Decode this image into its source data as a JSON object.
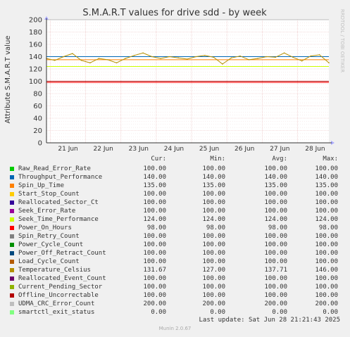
{
  "title": "S.M.A.R.T values for drive sdd - by week",
  "watermark": "RRDTOOL / TOBI OETIKER",
  "footer": "Munin 2.0.67",
  "last_update": "Last update: Sat Jun 28 21:21:43 2025",
  "legend_headers": {
    "cur": "Cur:",
    "min": "Min:",
    "avg": "Avg:",
    "max": "Max:"
  },
  "legend": [
    {
      "name": "Raw_Read_Error_Rate",
      "color": "#00cc00",
      "cur": "100.00",
      "min": "100.00",
      "avg": "100.00",
      "max": "100.00"
    },
    {
      "name": "Throughput_Performance",
      "color": "#0066b3",
      "cur": "140.00",
      "min": "140.00",
      "avg": "140.00",
      "max": "140.00"
    },
    {
      "name": "Spin_Up_Time",
      "color": "#ff8000",
      "cur": "135.00",
      "min": "135.00",
      "avg": "135.00",
      "max": "135.00"
    },
    {
      "name": "Start_Stop_Count",
      "color": "#ffcc00",
      "cur": "100.00",
      "min": "100.00",
      "avg": "100.00",
      "max": "100.00"
    },
    {
      "name": "Reallocated_Sector_Ct",
      "color": "#330099",
      "cur": "100.00",
      "min": "100.00",
      "avg": "100.00",
      "max": "100.00"
    },
    {
      "name": "Seek_Error_Rate",
      "color": "#990099",
      "cur": "100.00",
      "min": "100.00",
      "avg": "100.00",
      "max": "100.00"
    },
    {
      "name": "Seek_Time_Performance",
      "color": "#ccff00",
      "cur": "124.00",
      "min": "124.00",
      "avg": "124.00",
      "max": "124.00"
    },
    {
      "name": "Power_On_Hours",
      "color": "#ff0000",
      "cur": "98.00",
      "min": "98.00",
      "avg": "98.00",
      "max": "98.00"
    },
    {
      "name": "Spin_Retry_Count",
      "color": "#808080",
      "cur": "100.00",
      "min": "100.00",
      "avg": "100.00",
      "max": "100.00"
    },
    {
      "name": "Power_Cycle_Count",
      "color": "#008f00",
      "cur": "100.00",
      "min": "100.00",
      "avg": "100.00",
      "max": "100.00"
    },
    {
      "name": "Power_Off_Retract_Count",
      "color": "#00487d",
      "cur": "100.00",
      "min": "100.00",
      "avg": "100.00",
      "max": "100.00"
    },
    {
      "name": "Load_Cycle_Count",
      "color": "#b35a00",
      "cur": "100.00",
      "min": "100.00",
      "avg": "100.00",
      "max": "100.00"
    },
    {
      "name": "Temperature_Celsius",
      "color": "#b38f00",
      "cur": "131.67",
      "min": "127.00",
      "avg": "137.71",
      "max": "146.00"
    },
    {
      "name": "Reallocated_Event_Count",
      "color": "#6b006b",
      "cur": "100.00",
      "min": "100.00",
      "avg": "100.00",
      "max": "100.00"
    },
    {
      "name": "Current_Pending_Sector",
      "color": "#8fb300",
      "cur": "100.00",
      "min": "100.00",
      "avg": "100.00",
      "max": "100.00"
    },
    {
      "name": "Offline_Uncorrectable",
      "color": "#b30000",
      "cur": "100.00",
      "min": "100.00",
      "avg": "100.00",
      "max": "100.00"
    },
    {
      "name": "UDMA_CRC_Error_Count",
      "color": "#bebebe",
      "cur": "200.00",
      "min": "200.00",
      "avg": "200.00",
      "max": "200.00"
    },
    {
      "name": "smartctl_exit_status",
      "color": "#80ff80",
      "cur": "0.00",
      "min": "0.00",
      "avg": "0.00",
      "max": "0.00"
    }
  ],
  "chart_data": {
    "type": "line",
    "title": "S.M.A.R.T values for drive sdd - by week",
    "ylabel": "Attribute S.M.A.R.T value",
    "ylim": [
      0,
      200
    ],
    "yticks": [
      0,
      20,
      40,
      60,
      80,
      100,
      120,
      140,
      160,
      180,
      200
    ],
    "x_range": [
      "Jun 20 21:21",
      "Jun 28 21:21"
    ],
    "xticks": [
      "21 Jun",
      "22 Jun",
      "23 Jun",
      "24 Jun",
      "25 Jun",
      "26 Jun",
      "27 Jun",
      "28 Jun"
    ],
    "grid": true,
    "constant_series": [
      {
        "name": "Raw_Read_Error_Rate",
        "value": 100
      },
      {
        "name": "Throughput_Performance",
        "value": 140
      },
      {
        "name": "Spin_Up_Time",
        "value": 135
      },
      {
        "name": "Start_Stop_Count",
        "value": 100
      },
      {
        "name": "Reallocated_Sector_Ct",
        "value": 100
      },
      {
        "name": "Seek_Error_Rate",
        "value": 100
      },
      {
        "name": "Seek_Time_Performance",
        "value": 124
      },
      {
        "name": "Power_On_Hours",
        "value": 98
      },
      {
        "name": "Spin_Retry_Count",
        "value": 100
      },
      {
        "name": "Power_Cycle_Count",
        "value": 100
      },
      {
        "name": "Power_Off_Retract_Count",
        "value": 100
      },
      {
        "name": "Load_Cycle_Count",
        "value": 100
      },
      {
        "name": "Reallocated_Event_Count",
        "value": 100
      },
      {
        "name": "Current_Pending_Sector",
        "value": 100
      },
      {
        "name": "Offline_Uncorrectable",
        "value": 100
      },
      {
        "name": "UDMA_CRC_Error_Count",
        "value": 200
      },
      {
        "name": "smartctl_exit_status",
        "value": 0
      }
    ],
    "series": [
      {
        "name": "Temperature_Celsius",
        "x": [
          "Jun 20 21:21",
          "Jun 21 03:00",
          "Jun 21 09:00",
          "Jun 21 15:00",
          "Jun 21 21:00",
          "Jun 22 03:00",
          "Jun 22 09:00",
          "Jun 22 15:00",
          "Jun 22 21:00",
          "Jun 23 03:00",
          "Jun 23 09:00",
          "Jun 23 15:00",
          "Jun 23 21:00",
          "Jun 24 03:00",
          "Jun 24 09:00",
          "Jun 24 15:00",
          "Jun 24 21:00",
          "Jun 25 03:00",
          "Jun 25 09:00",
          "Jun 25 15:00",
          "Jun 25 21:00",
          "Jun 26 03:00",
          "Jun 26 09:00",
          "Jun 26 15:00",
          "Jun 26 21:00",
          "Jun 27 03:00",
          "Jun 27 09:00",
          "Jun 27 15:00",
          "Jun 27 21:00",
          "Jun 28 03:00",
          "Jun 28 09:00",
          "Jun 28 15:00",
          "Jun 28 21:21"
        ],
        "values": [
          137,
          134,
          140,
          145,
          134,
          130,
          137,
          135,
          130,
          137,
          142,
          146,
          140,
          137,
          140,
          138,
          136,
          140,
          142,
          139,
          128,
          138,
          141,
          135,
          137,
          140,
          139,
          146,
          139,
          133,
          141,
          143,
          130
        ]
      }
    ]
  }
}
